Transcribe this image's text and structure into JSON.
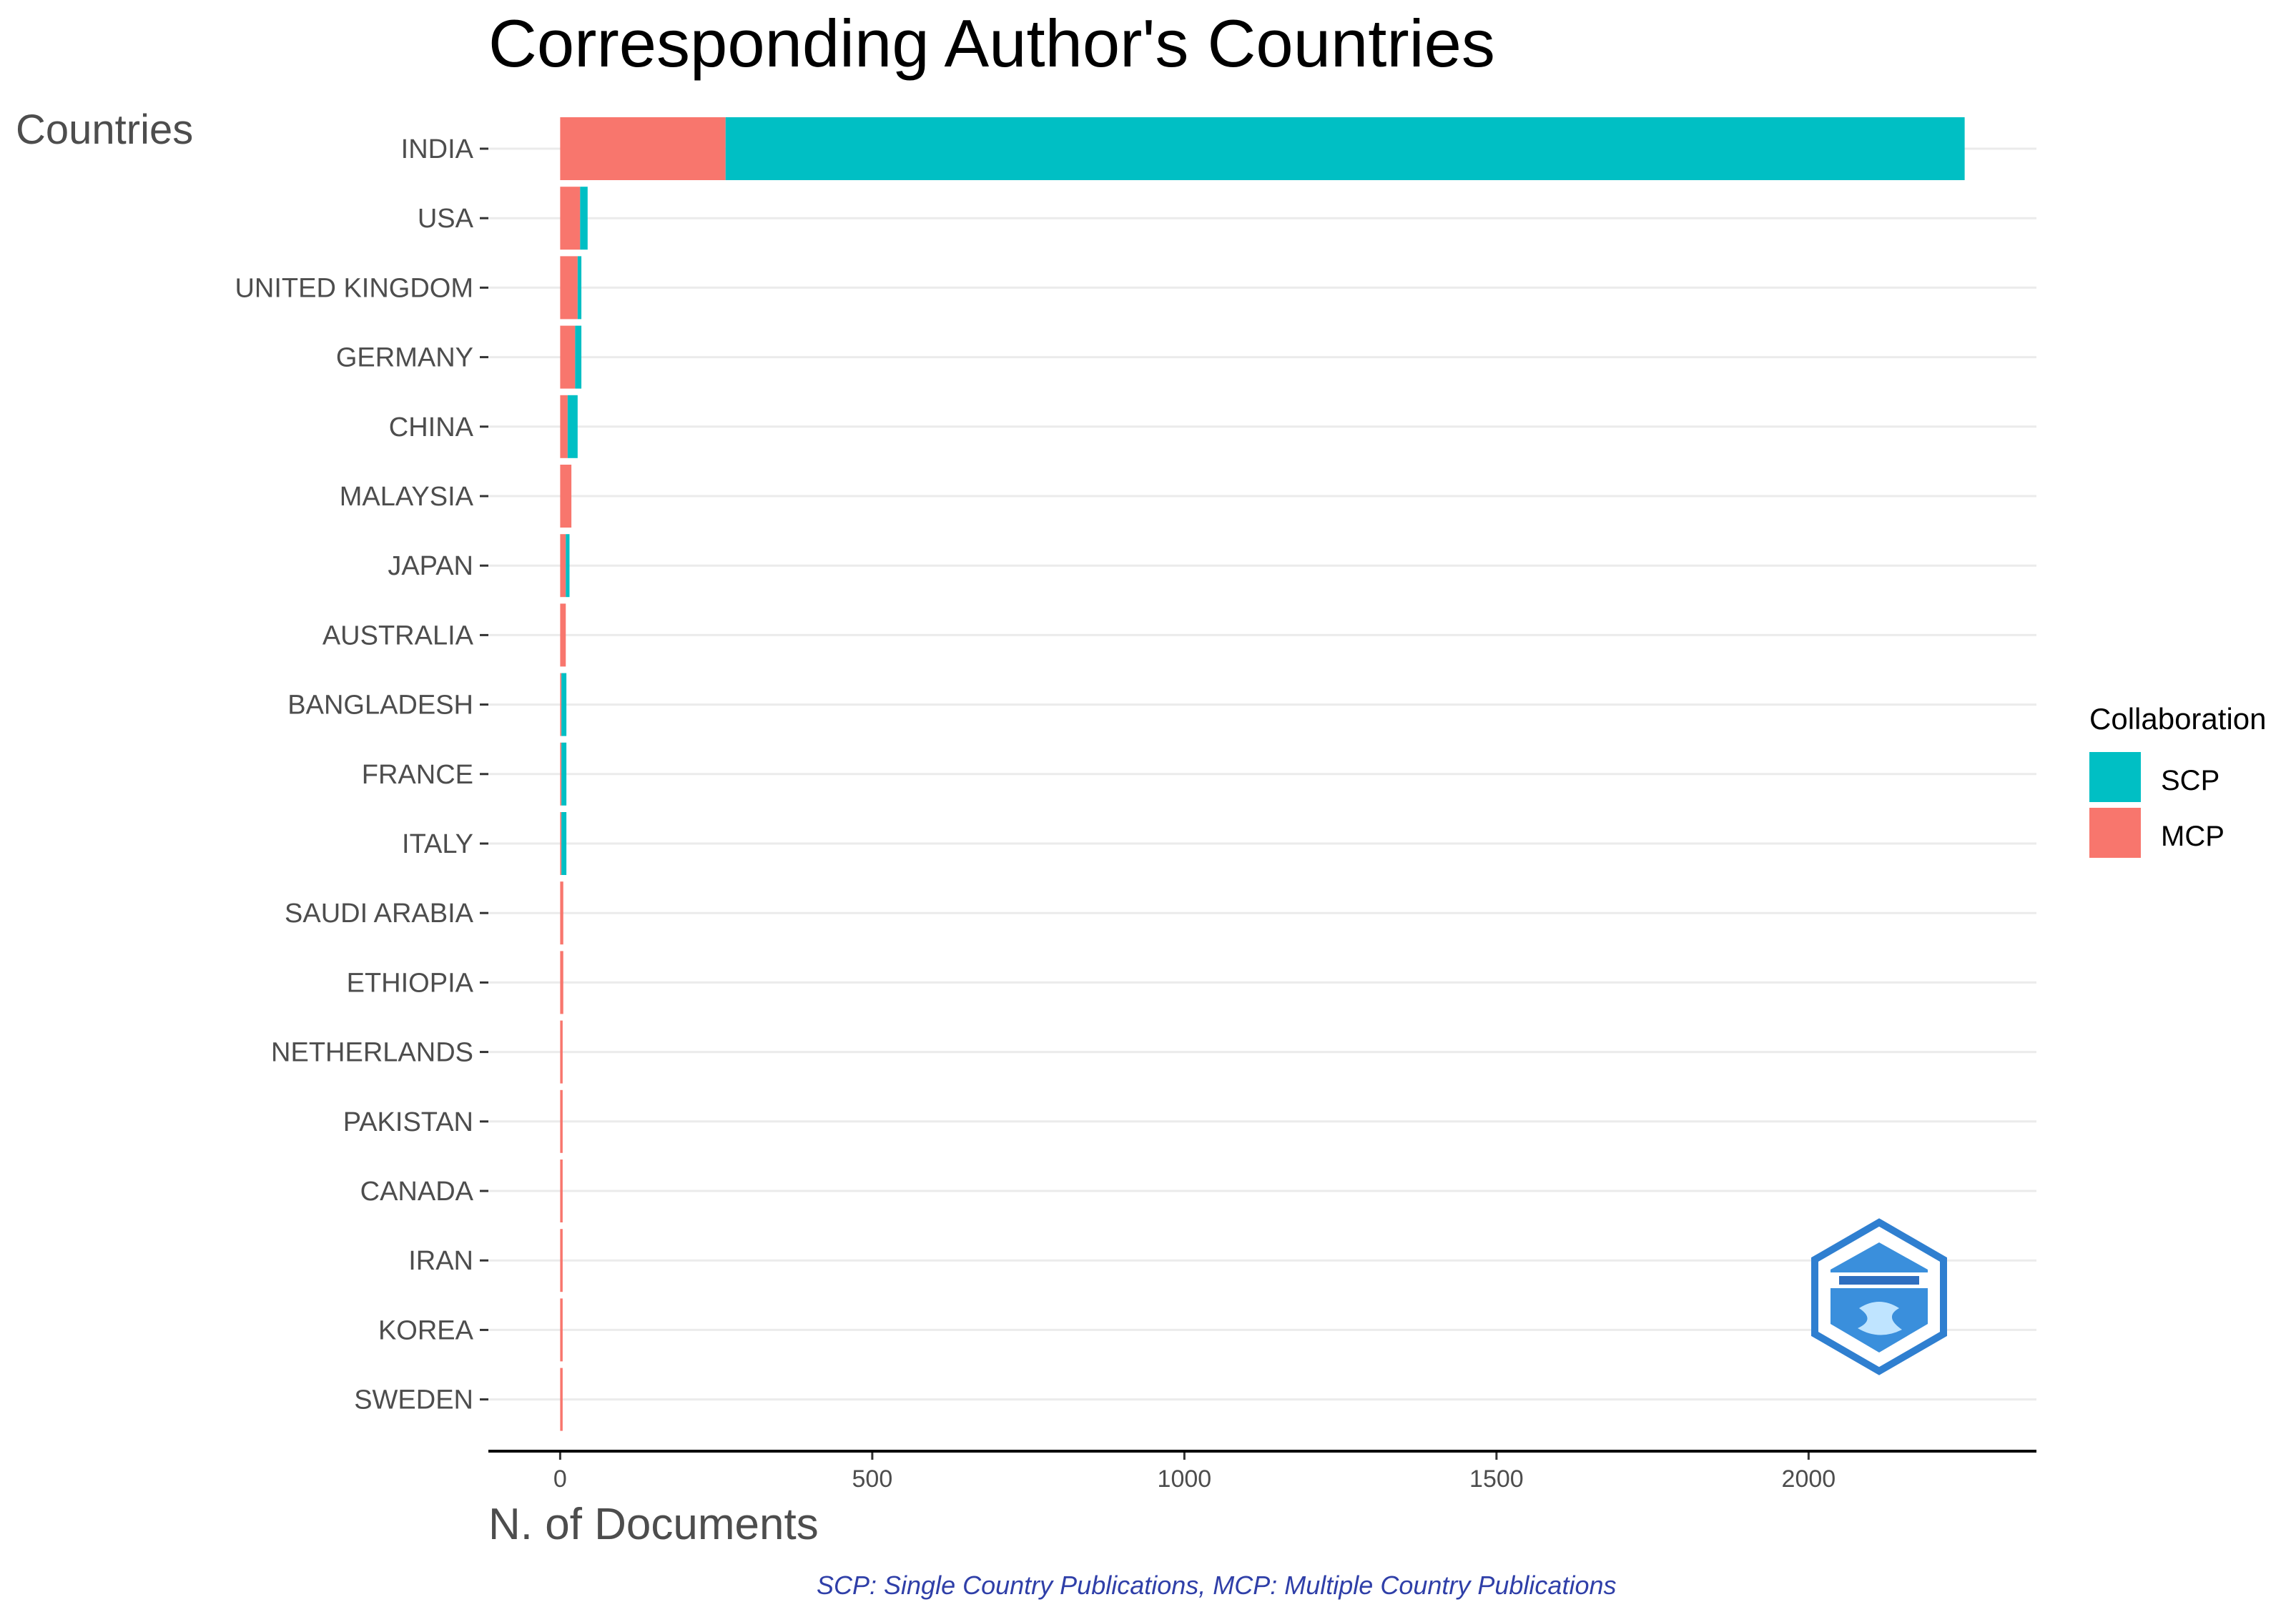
{
  "chart_data": {
    "type": "bar",
    "orientation": "horizontal",
    "stacked": true,
    "title": "Corresponding Author's Countries",
    "xlabel": "N. of Documents",
    "ylabel": "Countries",
    "caption": "SCP: Single Country Publications, MCP: Multiple Country Publications",
    "categories": [
      "INDIA",
      "USA",
      "UNITED KINGDOM",
      "GERMANY",
      "CHINA",
      "MALAYSIA",
      "JAPAN",
      "AUSTRALIA",
      "BANGLADESH",
      "FRANCE",
      "ITALY",
      "SAUDI ARABIA",
      "ETHIOPIA",
      "NETHERLANDS",
      "PAKISTAN",
      "CANADA",
      "IRAN",
      "KOREA",
      "SWEDEN"
    ],
    "series": [
      {
        "name": "MCP",
        "color": "#F8766D",
        "values": [
          265,
          32,
          28,
          24,
          12,
          18,
          9,
          9,
          2,
          2,
          2,
          5,
          5,
          4,
          4,
          4,
          4,
          4,
          4
        ]
      },
      {
        "name": "SCP",
        "color": "#00BFC4",
        "values": [
          1985,
          12,
          6,
          10,
          16,
          0,
          6,
          0,
          8,
          8,
          8,
          0,
          0,
          0,
          0,
          0,
          0,
          0,
          0
        ]
      }
    ],
    "xlim": [
      -115,
      2365
    ],
    "xticks": [
      0,
      500,
      1000,
      1500,
      2000
    ],
    "grid": true,
    "legend": {
      "title": "Collaboration",
      "placement": "right",
      "entries": [
        "SCP",
        "MCP"
      ]
    },
    "logo": "hexagon-logo-icon"
  }
}
